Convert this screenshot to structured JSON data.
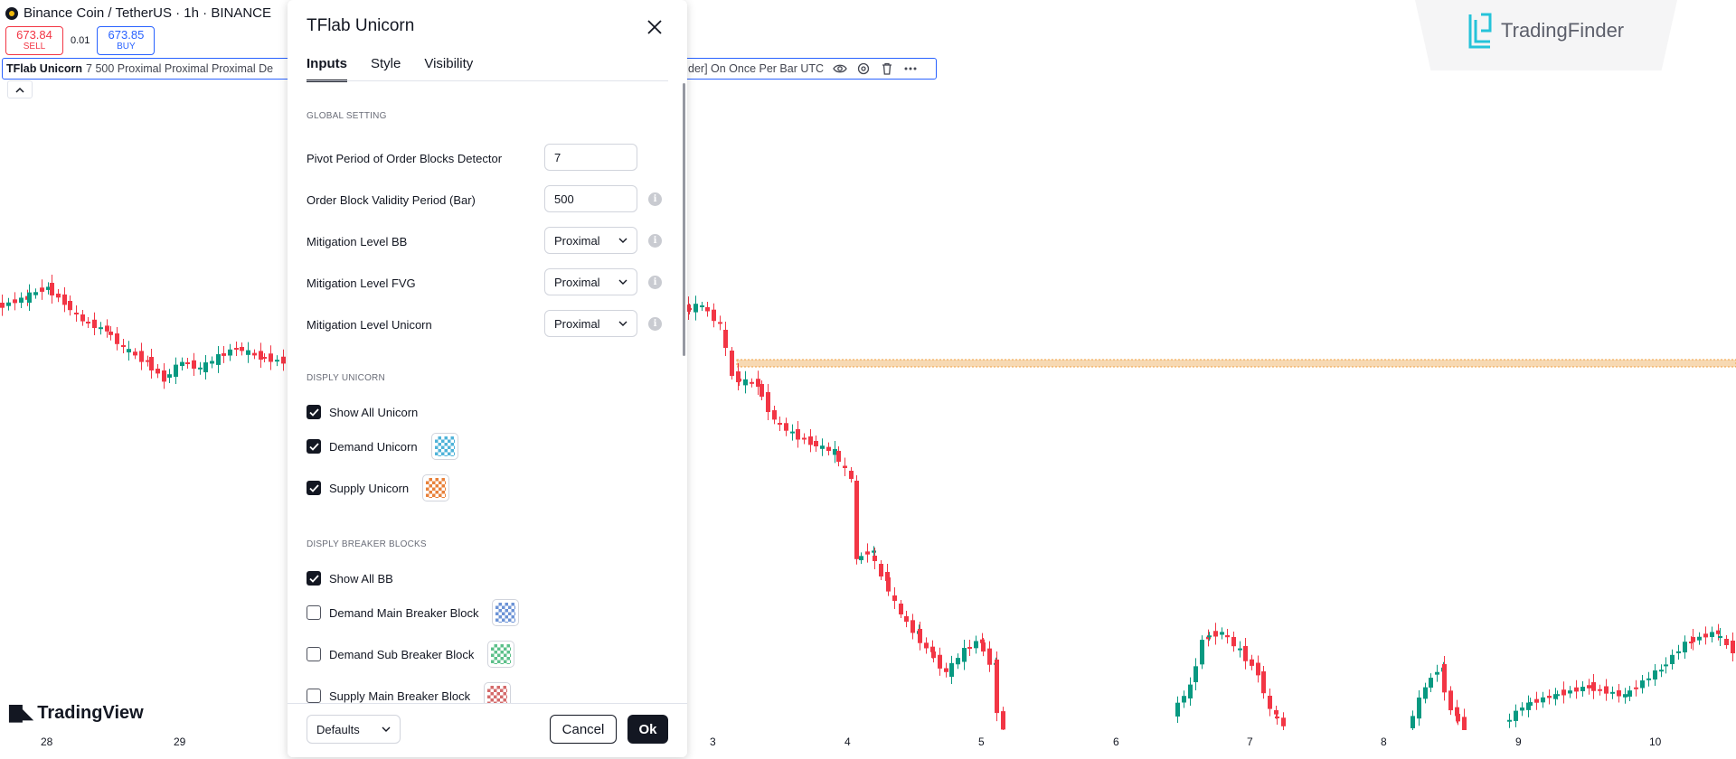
{
  "chart": {
    "symbol_title": "Binance Coin / TetherUS · 1h · BINANCE",
    "sell_price": "673.84",
    "sell_label": "SELL",
    "spread": "0.01",
    "buy_price": "673.85",
    "buy_label": "BUY",
    "indicator_name": "TFlab Unicorn",
    "indicator_args": "7 500 Proximal Proximal Proximal De",
    "indicator_tail": "der] On Once Per Bar UTC",
    "x_labels": [
      "28",
      "29",
      "3",
      "4",
      "5",
      "6",
      "7",
      "8",
      "9",
      "10"
    ],
    "brand_tv": "TradingView",
    "brand_tf": "TradingFinder",
    "colors": {
      "up": "#089981",
      "down": "#f23645",
      "level_line": "#f0a040"
    }
  },
  "dialog": {
    "title": "TFlab Unicorn",
    "tabs": [
      "Inputs",
      "Style",
      "Visibility"
    ],
    "active_tab": "Inputs",
    "sections": {
      "global": "GLOBAL SETTING",
      "unicorn": "DISPLY UNICORN",
      "breaker": "DISPLY BREAKER BLOCKS"
    },
    "inputs": [
      {
        "label": "Pivot Period of Order Blocks Detector",
        "value": "7"
      },
      {
        "label": "Order Block Validity Period (Bar)",
        "value": "500"
      },
      {
        "label": "Mitigation Level BB",
        "value": "Proximal"
      },
      {
        "label": "Mitigation Level FVG",
        "value": "Proximal"
      },
      {
        "label": "Mitigation Level Unicorn",
        "value": "Proximal"
      }
    ],
    "unicorn_options": [
      {
        "label": "Show All Unicorn",
        "checked": true
      },
      {
        "label": "Demand Unicorn",
        "checked": true,
        "color": "#4fb3d9"
      },
      {
        "label": "Supply Unicorn",
        "checked": true,
        "color": "#e8813a"
      }
    ],
    "breaker_options": [
      {
        "label": "Show All BB",
        "checked": true
      },
      {
        "label": "Demand Main Breaker Block",
        "checked": false,
        "color": "#6c93d6"
      },
      {
        "label": "Demand Sub Breaker Block",
        "checked": false,
        "color": "#5cc08a"
      },
      {
        "label": "Supply Main Breaker Block",
        "checked": false,
        "color": "#d46a6a"
      }
    ],
    "footer": {
      "defaults_label": "Defaults",
      "cancel_label": "Cancel",
      "ok_label": "Ok"
    }
  }
}
